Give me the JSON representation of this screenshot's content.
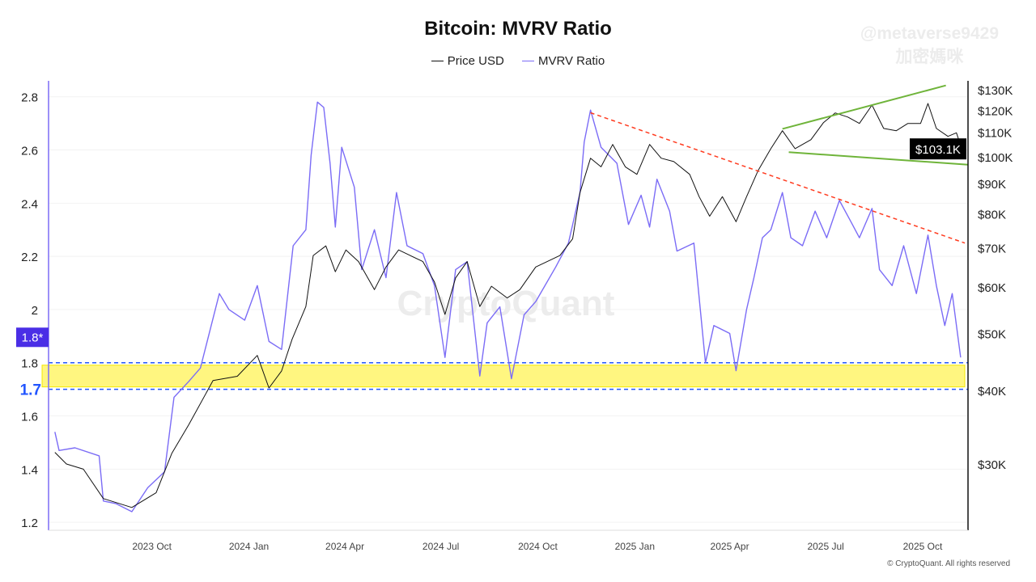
{
  "watermark": {
    "handle": "@metaverse9429",
    "name": "加密媽咪",
    "brand": "CryptoQuant"
  },
  "footer": "© CryptoQuant. All rights reserved",
  "colors": {
    "price": "#111111",
    "mvrv": "#7b6cf6",
    "mvrv_label": "#4a2ee6",
    "band": "#fff56a",
    "band_line": "#2255ff",
    "downtrend": "#ff3b1f",
    "channel": "#6fb43a"
  },
  "chart_data": {
    "type": "line",
    "title": "Bitcoin: MVRV Ratio",
    "legend": [
      "Price USD",
      "MVRV Ratio"
    ],
    "legend_placement": "top-center",
    "grid": true,
    "x_ticks": [
      "2023 Oct",
      "2024 Jan",
      "2024 Apr",
      "2024 Jul",
      "2024 Oct",
      "2025 Jan",
      "2025 Apr",
      "2025 Jul",
      "2025 Oct"
    ],
    "x_tick_dates": [
      "2023-10-01",
      "2024-01-01",
      "2024-04-01",
      "2024-07-01",
      "2024-10-01",
      "2025-01-01",
      "2025-04-01",
      "2025-07-01",
      "2025-10-01"
    ],
    "xlim": [
      "2023-06-25",
      "2025-11-13"
    ],
    "y_left": {
      "ticks": [
        "1.2",
        "1.4",
        "1.6",
        "1.8",
        "2",
        "2.2",
        "2.4",
        "2.6",
        "2.8"
      ],
      "ylim": [
        1.17,
        2.86
      ],
      "scale": "linear",
      "current_label": "1.8*",
      "current_value": 1.85
    },
    "y_right": {
      "ticks": [
        "$30K",
        "$40K",
        "$50K",
        "$60K",
        "$70K",
        "$80K",
        "$90K",
        "$100K",
        "$110K",
        "$120K",
        "$130K"
      ],
      "tick_values": [
        30,
        40,
        50,
        60,
        70,
        80,
        90,
        100,
        110,
        120,
        130
      ],
      "unit": "K USD",
      "scale": "log",
      "current_label": "$103.1K",
      "current_value": 103.1
    },
    "series": [
      {
        "name": "MVRV Ratio",
        "axis": "left",
        "points": [
          [
            "2023-07-01",
            1.54
          ],
          [
            "2023-07-05",
            1.47
          ],
          [
            "2023-07-20",
            1.48
          ],
          [
            "2023-08-12",
            1.45
          ],
          [
            "2023-08-16",
            1.28
          ],
          [
            "2023-08-28",
            1.27
          ],
          [
            "2023-09-12",
            1.24
          ],
          [
            "2023-09-27",
            1.33
          ],
          [
            "2023-10-13",
            1.39
          ],
          [
            "2023-10-22",
            1.67
          ],
          [
            "2023-11-05",
            1.73
          ],
          [
            "2023-11-16",
            1.78
          ],
          [
            "2023-12-04",
            2.06
          ],
          [
            "2023-12-13",
            2.0
          ],
          [
            "2023-12-28",
            1.96
          ],
          [
            "2024-01-09",
            2.09
          ],
          [
            "2024-01-20",
            1.88
          ],
          [
            "2024-02-01",
            1.85
          ],
          [
            "2024-02-12",
            2.24
          ],
          [
            "2024-02-24",
            2.3
          ],
          [
            "2024-02-29",
            2.58
          ],
          [
            "2024-03-06",
            2.78
          ],
          [
            "2024-03-12",
            2.76
          ],
          [
            "2024-03-18",
            2.55
          ],
          [
            "2024-03-23",
            2.31
          ],
          [
            "2024-03-29",
            2.61
          ],
          [
            "2024-04-10",
            2.46
          ],
          [
            "2024-04-17",
            2.15
          ],
          [
            "2024-04-29",
            2.3
          ],
          [
            "2024-05-10",
            2.12
          ],
          [
            "2024-05-20",
            2.44
          ],
          [
            "2024-05-30",
            2.24
          ],
          [
            "2024-06-14",
            2.21
          ],
          [
            "2024-06-25",
            2.09
          ],
          [
            "2024-07-05",
            1.82
          ],
          [
            "2024-07-15",
            2.15
          ],
          [
            "2024-07-26",
            2.18
          ],
          [
            "2024-08-07",
            1.75
          ],
          [
            "2024-08-14",
            1.95
          ],
          [
            "2024-08-26",
            2.01
          ],
          [
            "2024-09-06",
            1.74
          ],
          [
            "2024-09-18",
            1.98
          ],
          [
            "2024-09-29",
            2.03
          ],
          [
            "2024-10-18",
            2.16
          ],
          [
            "2024-10-30",
            2.25
          ],
          [
            "2024-11-10",
            2.44
          ],
          [
            "2024-11-14",
            2.63
          ],
          [
            "2024-11-20",
            2.75
          ],
          [
            "2024-11-30",
            2.61
          ],
          [
            "2024-12-15",
            2.55
          ],
          [
            "2024-12-26",
            2.32
          ],
          [
            "2025-01-07",
            2.43
          ],
          [
            "2025-01-15",
            2.31
          ],
          [
            "2025-01-22",
            2.49
          ],
          [
            "2025-02-03",
            2.37
          ],
          [
            "2025-02-10",
            2.22
          ],
          [
            "2025-02-26",
            2.25
          ],
          [
            "2025-03-09",
            1.8
          ],
          [
            "2025-03-17",
            1.94
          ],
          [
            "2025-04-01",
            1.91
          ],
          [
            "2025-04-07",
            1.77
          ],
          [
            "2025-04-17",
            2.0
          ],
          [
            "2025-04-24",
            2.12
          ],
          [
            "2025-05-02",
            2.27
          ],
          [
            "2025-05-10",
            2.3
          ],
          [
            "2025-05-21",
            2.44
          ],
          [
            "2025-05-29",
            2.27
          ],
          [
            "2025-06-09",
            2.24
          ],
          [
            "2025-06-21",
            2.37
          ],
          [
            "2025-07-02",
            2.27
          ],
          [
            "2025-07-14",
            2.41
          ],
          [
            "2025-07-25",
            2.33
          ],
          [
            "2025-08-02",
            2.27
          ],
          [
            "2025-08-14",
            2.38
          ],
          [
            "2025-08-21",
            2.15
          ],
          [
            "2025-09-02",
            2.09
          ],
          [
            "2025-09-13",
            2.24
          ],
          [
            "2025-09-25",
            2.06
          ],
          [
            "2025-10-06",
            2.28
          ],
          [
            "2025-10-14",
            2.09
          ],
          [
            "2025-10-22",
            1.94
          ],
          [
            "2025-10-29",
            2.06
          ],
          [
            "2025-11-02",
            1.94
          ],
          [
            "2025-11-06",
            1.82
          ]
        ]
      },
      {
        "name": "Price USD",
        "axis": "right",
        "unit": "K USD",
        "points": [
          [
            "2023-07-01",
            31.4
          ],
          [
            "2023-07-12",
            30.0
          ],
          [
            "2023-07-28",
            29.4
          ],
          [
            "2023-08-16",
            26.2
          ],
          [
            "2023-09-12",
            25.3
          ],
          [
            "2023-10-05",
            26.8
          ],
          [
            "2023-10-20",
            31.3
          ],
          [
            "2023-11-05",
            35.0
          ],
          [
            "2023-11-28",
            41.6
          ],
          [
            "2023-12-21",
            42.3
          ],
          [
            "2024-01-09",
            45.9
          ],
          [
            "2024-01-20",
            40.4
          ],
          [
            "2024-02-01",
            43.2
          ],
          [
            "2024-02-11",
            48.9
          ],
          [
            "2024-02-24",
            55.6
          ],
          [
            "2024-03-02",
            67.9
          ],
          [
            "2024-03-14",
            70.5
          ],
          [
            "2024-03-23",
            63.7
          ],
          [
            "2024-04-02",
            69.4
          ],
          [
            "2024-04-14",
            66.3
          ],
          [
            "2024-04-29",
            59.4
          ],
          [
            "2024-05-10",
            64.9
          ],
          [
            "2024-05-22",
            69.4
          ],
          [
            "2024-06-02",
            67.9
          ],
          [
            "2024-06-14",
            66.3
          ],
          [
            "2024-06-25",
            61.2
          ],
          [
            "2024-07-05",
            53.9
          ],
          [
            "2024-07-15",
            62.2
          ],
          [
            "2024-07-26",
            66.3
          ],
          [
            "2024-08-07",
            55.6
          ],
          [
            "2024-08-18",
            60.2
          ],
          [
            "2024-09-02",
            57.5
          ],
          [
            "2024-09-14",
            59.4
          ],
          [
            "2024-09-29",
            64.9
          ],
          [
            "2024-10-22",
            67.9
          ],
          [
            "2024-11-03",
            72.5
          ],
          [
            "2024-11-10",
            86.9
          ],
          [
            "2024-11-20",
            99.4
          ],
          [
            "2024-11-30",
            96.1
          ],
          [
            "2024-12-11",
            104.9
          ],
          [
            "2024-12-23",
            96.1
          ],
          [
            "2025-01-03",
            93.3
          ],
          [
            "2025-01-15",
            104.9
          ],
          [
            "2025-01-26",
            99.4
          ],
          [
            "2025-02-07",
            98.1
          ],
          [
            "2025-02-22",
            93.3
          ],
          [
            "2025-03-03",
            85.5
          ],
          [
            "2025-03-13",
            79.2
          ],
          [
            "2025-03-25",
            85.5
          ],
          [
            "2025-04-07",
            77.5
          ],
          [
            "2025-04-17",
            85.5
          ],
          [
            "2025-04-28",
            94.8
          ],
          [
            "2025-05-10",
            103.2
          ],
          [
            "2025-05-21",
            110.7
          ],
          [
            "2025-06-02",
            103.2
          ],
          [
            "2025-06-17",
            106.9
          ],
          [
            "2025-06-29",
            114.3
          ],
          [
            "2025-07-10",
            118.7
          ],
          [
            "2025-07-22",
            116.8
          ],
          [
            "2025-08-02",
            113.9
          ],
          [
            "2025-08-14",
            122.4
          ],
          [
            "2025-08-25",
            111.7
          ],
          [
            "2025-09-06",
            110.7
          ],
          [
            "2025-09-17",
            113.9
          ],
          [
            "2025-09-29",
            113.9
          ],
          [
            "2025-10-06",
            123.2
          ],
          [
            "2025-10-14",
            111.7
          ],
          [
            "2025-10-25",
            108.3
          ],
          [
            "2025-11-02",
            109.8
          ],
          [
            "2025-11-07",
            103.1
          ]
        ]
      }
    ],
    "annotations": {
      "support_band": {
        "axis": "left",
        "from": 1.7,
        "to": 1.8,
        "label": "1.7"
      },
      "downtrend_line": {
        "axis": "left",
        "from": [
          "2024-11-20",
          2.74
        ],
        "to": [
          "2025-11-10",
          2.25
        ]
      },
      "channel_upper": {
        "axis": "right",
        "from": [
          "2025-05-21",
          111.5
        ],
        "to": [
          "2025-10-23",
          132.2
        ]
      },
      "channel_lower": {
        "axis": "right",
        "from": [
          "2025-05-27",
          101.8
        ],
        "to": [
          "2025-11-13",
          96.9
        ]
      }
    }
  }
}
